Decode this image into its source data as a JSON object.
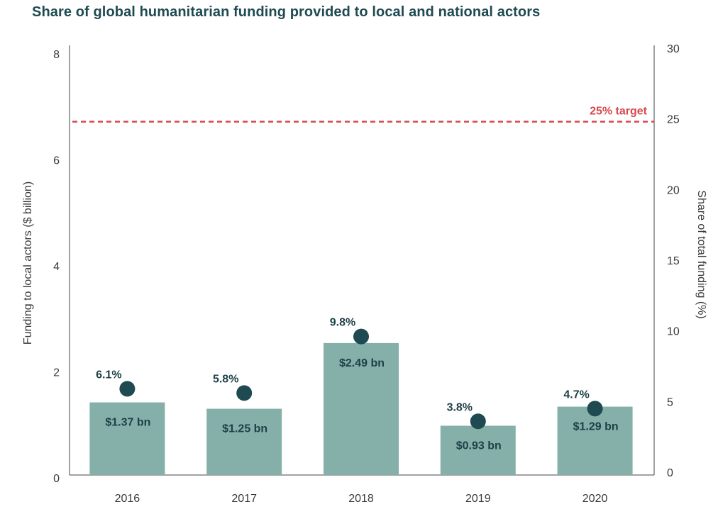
{
  "chart_data": {
    "type": "bar",
    "title": "Share of global humanitarian funding provided to local and national actors",
    "categories": [
      "2016",
      "2017",
      "2018",
      "2019",
      "2020"
    ],
    "series": [
      {
        "axis": "left",
        "kind": "bar",
        "values": [
          1.37,
          1.25,
          2.49,
          0.93,
          1.29
        ],
        "labels": [
          "$1.37 bn",
          "$1.25 bn",
          "$2.49 bn",
          "$0.93 bn",
          "$1.29 bn"
        ]
      },
      {
        "axis": "right",
        "kind": "point",
        "values": [
          6.1,
          5.8,
          9.8,
          3.8,
          4.7
        ],
        "labels": [
          "6.1%",
          "5.8%",
          "9.8%",
          "3.8%",
          "4.7%"
        ]
      }
    ],
    "ylabel": "Funding to local actors ($ billion)",
    "ylim": [
      0,
      8
    ],
    "yticks": [
      "0",
      "2",
      "4",
      "6",
      "8"
    ],
    "y2label": "Share of total funding (%)",
    "y2lim": [
      0,
      30
    ],
    "y2ticks": [
      "0",
      "5",
      "10",
      "15",
      "20",
      "25",
      "30"
    ],
    "target": {
      "value": 25,
      "label": "25% target",
      "color": "#d9474e"
    },
    "colors": {
      "bar": "#84b0a9",
      "point": "#1f4a52",
      "title": "#1f4a52"
    },
    "grid": false,
    "legend": "none"
  }
}
